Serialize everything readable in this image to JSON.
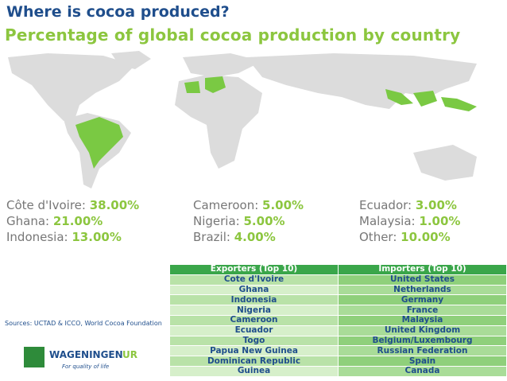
{
  "title": "Where is cocoa produced?",
  "subtitle": "Percentage of global cocoa production by country",
  "shares": [
    {
      "name": "Côte d'Ivoire:",
      "value": "38.00%"
    },
    {
      "name": "Ghana:",
      "value": "21.00%"
    },
    {
      "name": "Indonesia:",
      "value": "13.00%"
    },
    {
      "name": "Cameroon:",
      "value": "5.00%"
    },
    {
      "name": "Nigeria:",
      "value": "5.00%"
    },
    {
      "name": "Brazil:",
      "value": "4.00%"
    },
    {
      "name": "Ecuador:",
      "value": "3.00%"
    },
    {
      "name": "Malaysia:",
      "value": "1.00%"
    },
    {
      "name": "Other:",
      "value": "10.00%"
    }
  ],
  "table": {
    "headers": [
      "Exporters (Top 10)",
      "Importers (Top 10)"
    ],
    "rows": [
      [
        "Cote d'Ivoire",
        "United States"
      ],
      [
        "Ghana",
        "Netherlands"
      ],
      [
        "Indonesia",
        "Germany"
      ],
      [
        "Nigeria",
        "France"
      ],
      [
        "Cameroon",
        "Malaysia"
      ],
      [
        "Ecuador",
        "United Kingdom"
      ],
      [
        "Togo",
        "Belgium/Luxembourg"
      ],
      [
        "Papua New Guinea",
        "Russian Federation"
      ],
      [
        "Dominican Republic",
        "Spain"
      ],
      [
        "Guinea",
        "Canada"
      ]
    ]
  },
  "source": "Sources: UCTAD & ICCO, World Cocoa Foundation",
  "logo": {
    "name": "WAGENINGEN",
    "suffix": "UR",
    "tagline": "For quality of life"
  }
}
